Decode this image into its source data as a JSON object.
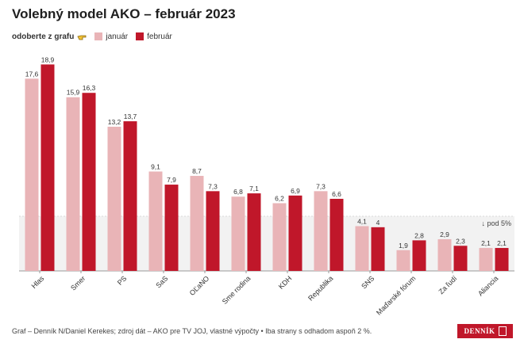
{
  "header": {
    "title": "Volebný model AKO – február 2023"
  },
  "legend": {
    "pick_label": "odoberte z grafu",
    "hand_icon": "pointing-hand-icon",
    "january_label": "január",
    "february_label": "február"
  },
  "colors": {
    "january": "#e9b4b7",
    "february": "#c0172a",
    "threshold_band": "#f2f2f2"
  },
  "chart_data": {
    "type": "bar",
    "categories": [
      "Hlas",
      "Smer",
      "PS",
      "SaS",
      "OĽaNO",
      "Sme rodina",
      "KDH",
      "Republika",
      "SNS",
      "Maďarské fórum",
      "Za ľudí",
      "Aliancia"
    ],
    "series": [
      {
        "name": "január",
        "values": [
          17.6,
          15.9,
          13.2,
          9.1,
          8.7,
          6.8,
          6.2,
          7.3,
          4.1,
          1.9,
          2.9,
          2.1
        ]
      },
      {
        "name": "február",
        "values": [
          18.9,
          16.3,
          13.7,
          7.9,
          7.3,
          7.1,
          6.9,
          6.6,
          4,
          2.8,
          2.3,
          2.1
        ]
      }
    ],
    "value_labels": {
      "january": [
        "17,6",
        "15,9",
        "13,2",
        "9,1",
        "8,7",
        "6,8",
        "6,2",
        "7,3",
        "4,1",
        "1,9",
        "2,9",
        "2,1"
      ],
      "february": [
        "18,9",
        "16,3",
        "13,7",
        "7,9",
        "7,3",
        "7,1",
        "6,9",
        "6,6",
        "4",
        "2,8",
        "2,3",
        "2,1"
      ]
    },
    "threshold": {
      "value": 5,
      "label": "↓ pod 5%"
    },
    "ylim": [
      0,
      19
    ],
    "xlabel": "",
    "ylabel": "",
    "grid": false,
    "legend_position": "top-left"
  },
  "footer": {
    "source": "Graf – Denník N/Daniel Kerekes; zdroj dát – AKO pre TV JOJ, vlastné výpočty • Iba strany s odhadom aspoň 2 %.",
    "logo_text": "DENNÍK"
  }
}
